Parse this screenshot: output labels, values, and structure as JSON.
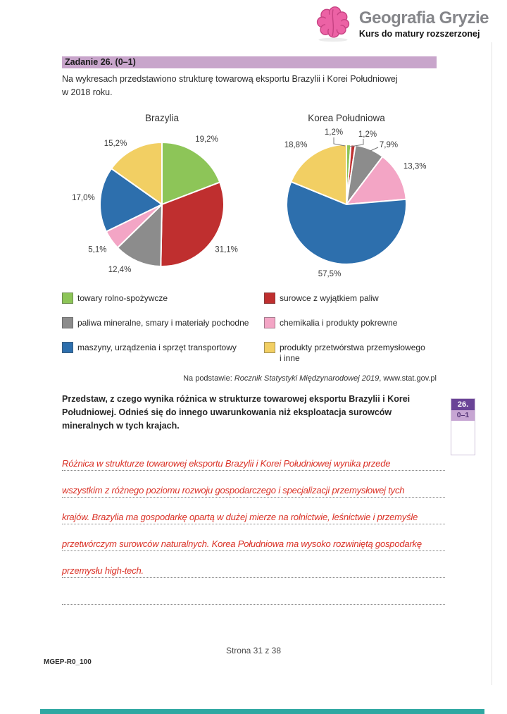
{
  "header": {
    "brand": "Geografia Gryzie",
    "tagline": "Kurs do matury rozszerzonej",
    "brand_color": "#85868a",
    "logo_icon": "brain-icon",
    "logo_color": "#ec62a5"
  },
  "task": {
    "bar_label": "Zadanie 26. (0–1)",
    "bar_color": "#c8a5cb",
    "intro": "Na wykresach przedstawiono strukturę towarową eksportu Brazylii i Korei Południowej\nw 2018 roku."
  },
  "chart_data": [
    {
      "type": "pie",
      "title": "Brazylia",
      "unit": "%",
      "start_angle_deg": 0,
      "direction": "clockwise",
      "slices": [
        {
          "label": "towary rolno-spożywcze",
          "value": 19.2,
          "display": "19,2%",
          "color": "#8dc558"
        },
        {
          "label": "surowce z wyjątkiem paliw",
          "value": 31.1,
          "display": "31,1%",
          "color": "#bf2f2f"
        },
        {
          "label": "paliwa mineralne, smary i materiały pochodne",
          "value": 12.4,
          "display": "12,4%",
          "color": "#8c8c8c"
        },
        {
          "label": "chemikalia i produkty pokrewne",
          "value": 5.1,
          "display": "5,1%",
          "color": "#f3a5c5"
        },
        {
          "label": "maszyny, urządzenia i sprzęt transportowy",
          "value": 17.0,
          "display": "17,0%",
          "color": "#2d6fad"
        },
        {
          "label": "produkty przetwórstwa przemysłowego i inne",
          "value": 15.2,
          "display": "15,2%",
          "color": "#f2cf63"
        }
      ]
    },
    {
      "type": "pie",
      "title": "Korea Południowa",
      "unit": "%",
      "start_angle_deg": 0,
      "direction": "clockwise",
      "slices": [
        {
          "label": "towary rolno-spożywcze",
          "value": 1.2,
          "display": "1,2%",
          "color": "#8dc558"
        },
        {
          "label": "surowce z wyjątkiem paliw",
          "value": 1.2,
          "display": "1,2%",
          "color": "#bf2f2f"
        },
        {
          "label": "paliwa mineralne, smary i materiały pochodne",
          "value": 7.9,
          "display": "7,9%",
          "color": "#8c8c8c"
        },
        {
          "label": "chemikalia i produkty pokrewne",
          "value": 13.3,
          "display": "13,3%",
          "color": "#f3a5c5"
        },
        {
          "label": "maszyny, urządzenia i sprzęt transportowy",
          "value": 57.5,
          "display": "57,5%",
          "color": "#2d6fad"
        },
        {
          "label": "produkty przetwórstwa przemysłowego i inne",
          "value": 18.8,
          "display": "18,8%",
          "color": "#f2cf63"
        }
      ]
    }
  ],
  "legend": {
    "left": [
      {
        "color": "#8dc558",
        "label": "towary rolno-spożywcze"
      },
      {
        "color": "#8c8c8c",
        "label": "paliwa mineralne, smary i materiały pochodne"
      },
      {
        "color": "#2d6fad",
        "label": "maszyny, urządzenia i sprzęt transportowy"
      }
    ],
    "right": [
      {
        "color": "#bf2f2f",
        "label": "surowce z wyjątkiem paliw"
      },
      {
        "color": "#f3a5c5",
        "label": "chemikalia i produkty pokrewne"
      },
      {
        "color": "#f2cf63",
        "label": "produkty przetwórstwa przemysłowego\ni inne"
      }
    ]
  },
  "source": {
    "prefix": "Na podstawie: ",
    "italic": "Rocznik Statystyki Międzynarodowej 2019",
    "suffix": ", www.stat.gov.pl"
  },
  "question": {
    "text": "Przedstaw, z czego wynika różnica w strukturze towarowej eksportu Brazylii i Korei\nPołudniowej. Odnieś się do innego uwarunkowania niż eksploatacja surowców\nmineralnych w tych krajach.",
    "margin_badge": {
      "number": "26.",
      "points": "0–1",
      "dark_color": "#6a4497",
      "light_color": "#c7a6d3"
    }
  },
  "answer": {
    "ink_color": "#da3126",
    "lines": [
      "Różnica w strukturze towarowej eksportu Brazylii i Korei Południowej wynika przede",
      "wszystkim z różnego poziomu rozwoju gospodarczego i specjalizacji przemysłowej tych",
      "krajów. Brazylia ma gospodarkę opartą w dużej mierze na rolnictwie, leśnictwie i przemyśle",
      "przetwórczym surowców naturalnych. Korea Południowa ma wysoko rozwiniętą gospodarkę",
      "przemysłu high-tech.",
      ""
    ]
  },
  "footer": {
    "page": "Strona 31 z 38",
    "code": "MGEP-R0_100"
  },
  "accent_bar_color": "#2fa8a2"
}
